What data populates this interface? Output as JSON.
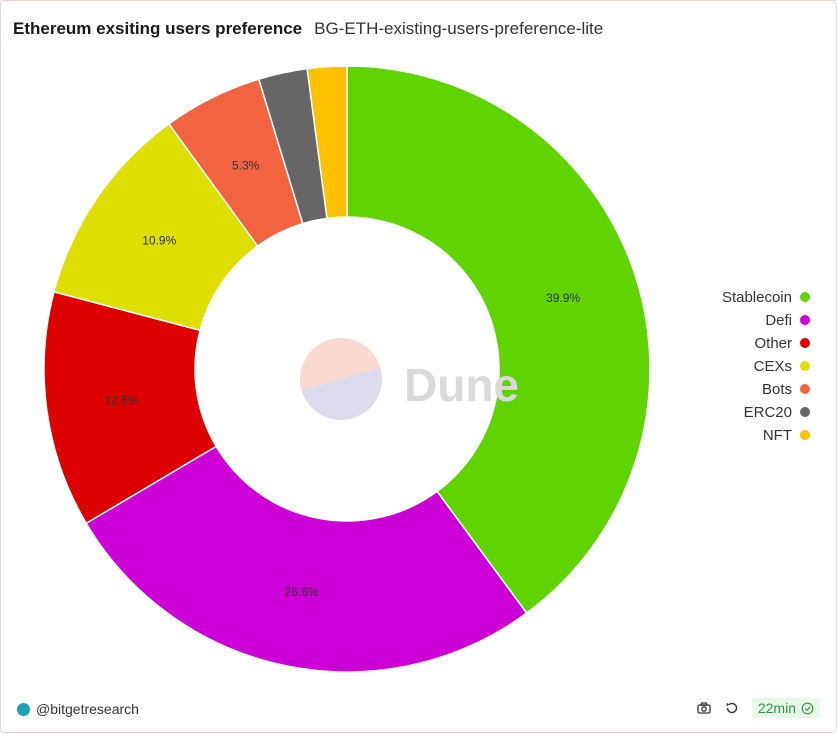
{
  "header": {
    "title": "Ethereum exsiting users preference",
    "subtitle": "BG-ETH-existing-users-preference-lite"
  },
  "chart_data": {
    "type": "pie",
    "style": "donut",
    "categories": [
      "Stablecoin",
      "Defi",
      "Other",
      "CEXs",
      "Bots",
      "ERC20",
      "NFT"
    ],
    "values": [
      39.9,
      26.6,
      12.6,
      10.9,
      5.3,
      2.6,
      2.1
    ],
    "data_labels": [
      "39.9%",
      "26.6%",
      "12.6%",
      "10.9%",
      "5.3%",
      "",
      ""
    ],
    "colors": [
      "#5fd400",
      "#cc00d6",
      "#dd0000",
      "#dede00",
      "#f26440",
      "#666666",
      "#ffc000"
    ],
    "legend_position": "right"
  },
  "watermark": {
    "text": "Dune",
    "colors": [
      "#fbd9d3",
      "#dcdcec"
    ]
  },
  "footer": {
    "credit": "@bitgetresearch",
    "refresh_label": "22min"
  },
  "icons": {
    "brand": "bitget-logo-icon",
    "camera": "camera-icon",
    "refresh": "refresh-icon",
    "check": "check-circle-icon"
  }
}
